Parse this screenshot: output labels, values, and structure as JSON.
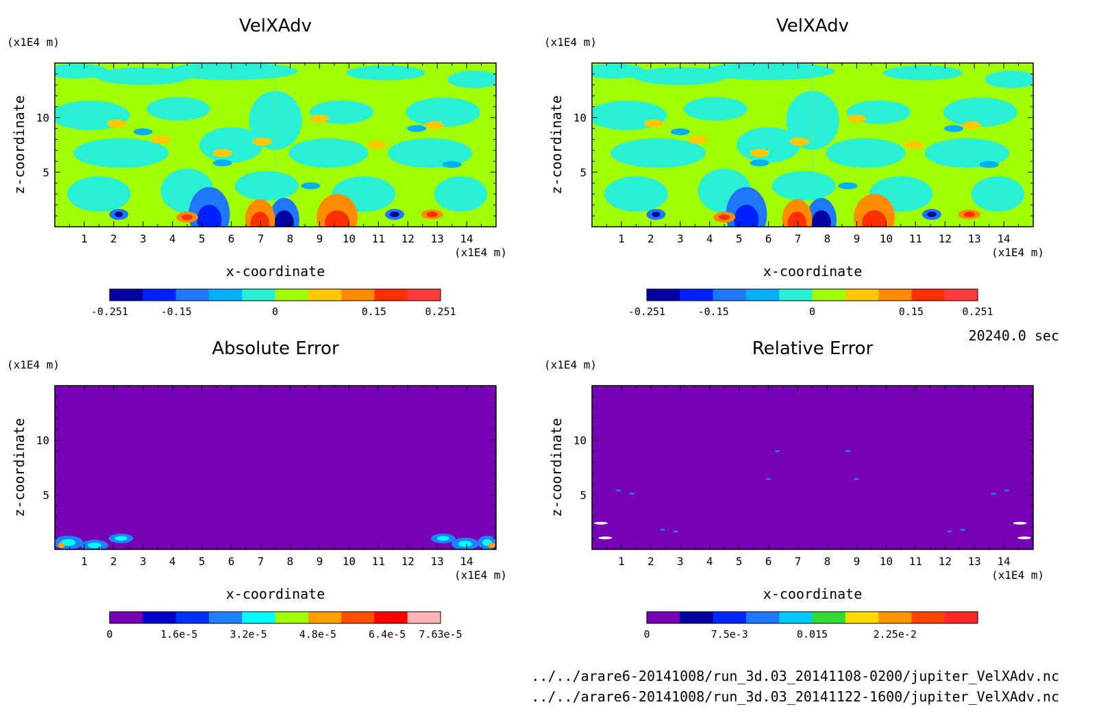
{
  "time_label": "20240.0 sec",
  "file_paths": [
    "../../arare6-20141008/run_3d.03_20141108-0200/jupiter_VelXAdv.nc",
    "../../arare6-20141008/run_3d.03_20141122-1600/jupiter_VelXAdv.nc"
  ],
  "chart_data": [
    {
      "type": "heatmap",
      "title": "VelXAdv",
      "xlabel": "x-coordinate",
      "ylabel": "z-coordinate",
      "x_unit": "(x1E4 m)",
      "y_unit": "(x1E4 m)",
      "xlim": [
        0,
        15
      ],
      "ylim": [
        0,
        15
      ],
      "x_ticks": [
        1,
        2,
        3,
        4,
        5,
        6,
        7,
        8,
        9,
        10,
        11,
        12,
        13,
        14
      ],
      "y_ticks": [
        5,
        10
      ],
      "colorbar_colors": [
        "#0000a0",
        "#0020ff",
        "#1e78ff",
        "#00b0ff",
        "#28f0d2",
        "#a0ff00",
        "#ffc800",
        "#ff8c00",
        "#ff3000",
        "#ff3c3c"
      ],
      "colorbar_tick_labels": [
        "-0.251",
        "-0.15",
        "0",
        "0.15",
        "0.251"
      ],
      "colorbar_tick_values": [
        -0.251,
        -0.15,
        0,
        0.15,
        0.251
      ],
      "colorbar_range": [
        -0.251,
        0.251
      ]
    },
    {
      "type": "heatmap",
      "title": "VelXAdv",
      "xlabel": "x-coordinate",
      "ylabel": "z-coordinate",
      "x_unit": "(x1E4 m)",
      "y_unit": "(x1E4 m)",
      "xlim": [
        0,
        15
      ],
      "ylim": [
        0,
        15
      ],
      "x_ticks": [
        1,
        2,
        3,
        4,
        5,
        6,
        7,
        8,
        9,
        10,
        11,
        12,
        13,
        14
      ],
      "y_ticks": [
        5,
        10
      ],
      "colorbar_colors": [
        "#0000a0",
        "#0020ff",
        "#1e78ff",
        "#00b0ff",
        "#28f0d2",
        "#a0ff00",
        "#ffc800",
        "#ff8c00",
        "#ff3000",
        "#ff3c3c"
      ],
      "colorbar_tick_labels": [
        "-0.251",
        "-0.15",
        "0",
        "0.15",
        "0.251"
      ],
      "colorbar_tick_values": [
        -0.251,
        -0.15,
        0,
        0.15,
        0.251
      ],
      "colorbar_range": [
        -0.251,
        0.251
      ]
    },
    {
      "type": "heatmap",
      "title": "Absolute Error",
      "xlabel": "x-coordinate",
      "ylabel": "z-coordinate",
      "x_unit": "(x1E4 m)",
      "y_unit": "(x1E4 m)",
      "xlim": [
        0,
        15
      ],
      "ylim": [
        0,
        15
      ],
      "x_ticks": [
        1,
        2,
        3,
        4,
        5,
        6,
        7,
        8,
        9,
        10,
        11,
        12,
        13,
        14
      ],
      "y_ticks": [
        5,
        10
      ],
      "colorbar_colors": [
        "#7800b4",
        "#0000c8",
        "#0032ff",
        "#1e82ff",
        "#00ffff",
        "#a0ff00",
        "#ffa000",
        "#ff5000",
        "#ff0000",
        "#ffb4b4"
      ],
      "colorbar_tick_labels": [
        "0",
        "1.6e-5",
        "3.2e-5",
        "4.8e-5",
        "6.4e-5",
        "7.63e-5"
      ],
      "colorbar_tick_values": [
        0,
        1.6e-05,
        3.2e-05,
        4.8e-05,
        6.4e-05,
        7.63e-05
      ],
      "colorbar_range": [
        0,
        7.63e-05
      ]
    },
    {
      "type": "heatmap",
      "title": "Relative Error",
      "xlabel": "x-coordinate",
      "ylabel": "z-coordinate",
      "x_unit": "(x1E4 m)",
      "y_unit": "(x1E4 m)",
      "xlim": [
        0,
        15
      ],
      "ylim": [
        0,
        15
      ],
      "x_ticks": [
        1,
        2,
        3,
        4,
        5,
        6,
        7,
        8,
        9,
        10,
        11,
        12,
        13,
        14
      ],
      "y_ticks": [
        5,
        10
      ],
      "colorbar_colors": [
        "#7800b4",
        "#0000a0",
        "#0028ff",
        "#1e78ff",
        "#00c8ff",
        "#32dc32",
        "#ffdc00",
        "#ff9600",
        "#ff4600",
        "#ff2828"
      ],
      "colorbar_tick_labels": [
        "0",
        "7.5e-3",
        "0.015",
        "2.25e-2"
      ],
      "colorbar_tick_values": [
        0,
        0.0075,
        0.015,
        0.0225
      ],
      "colorbar_range": [
        0,
        0.03
      ]
    }
  ]
}
